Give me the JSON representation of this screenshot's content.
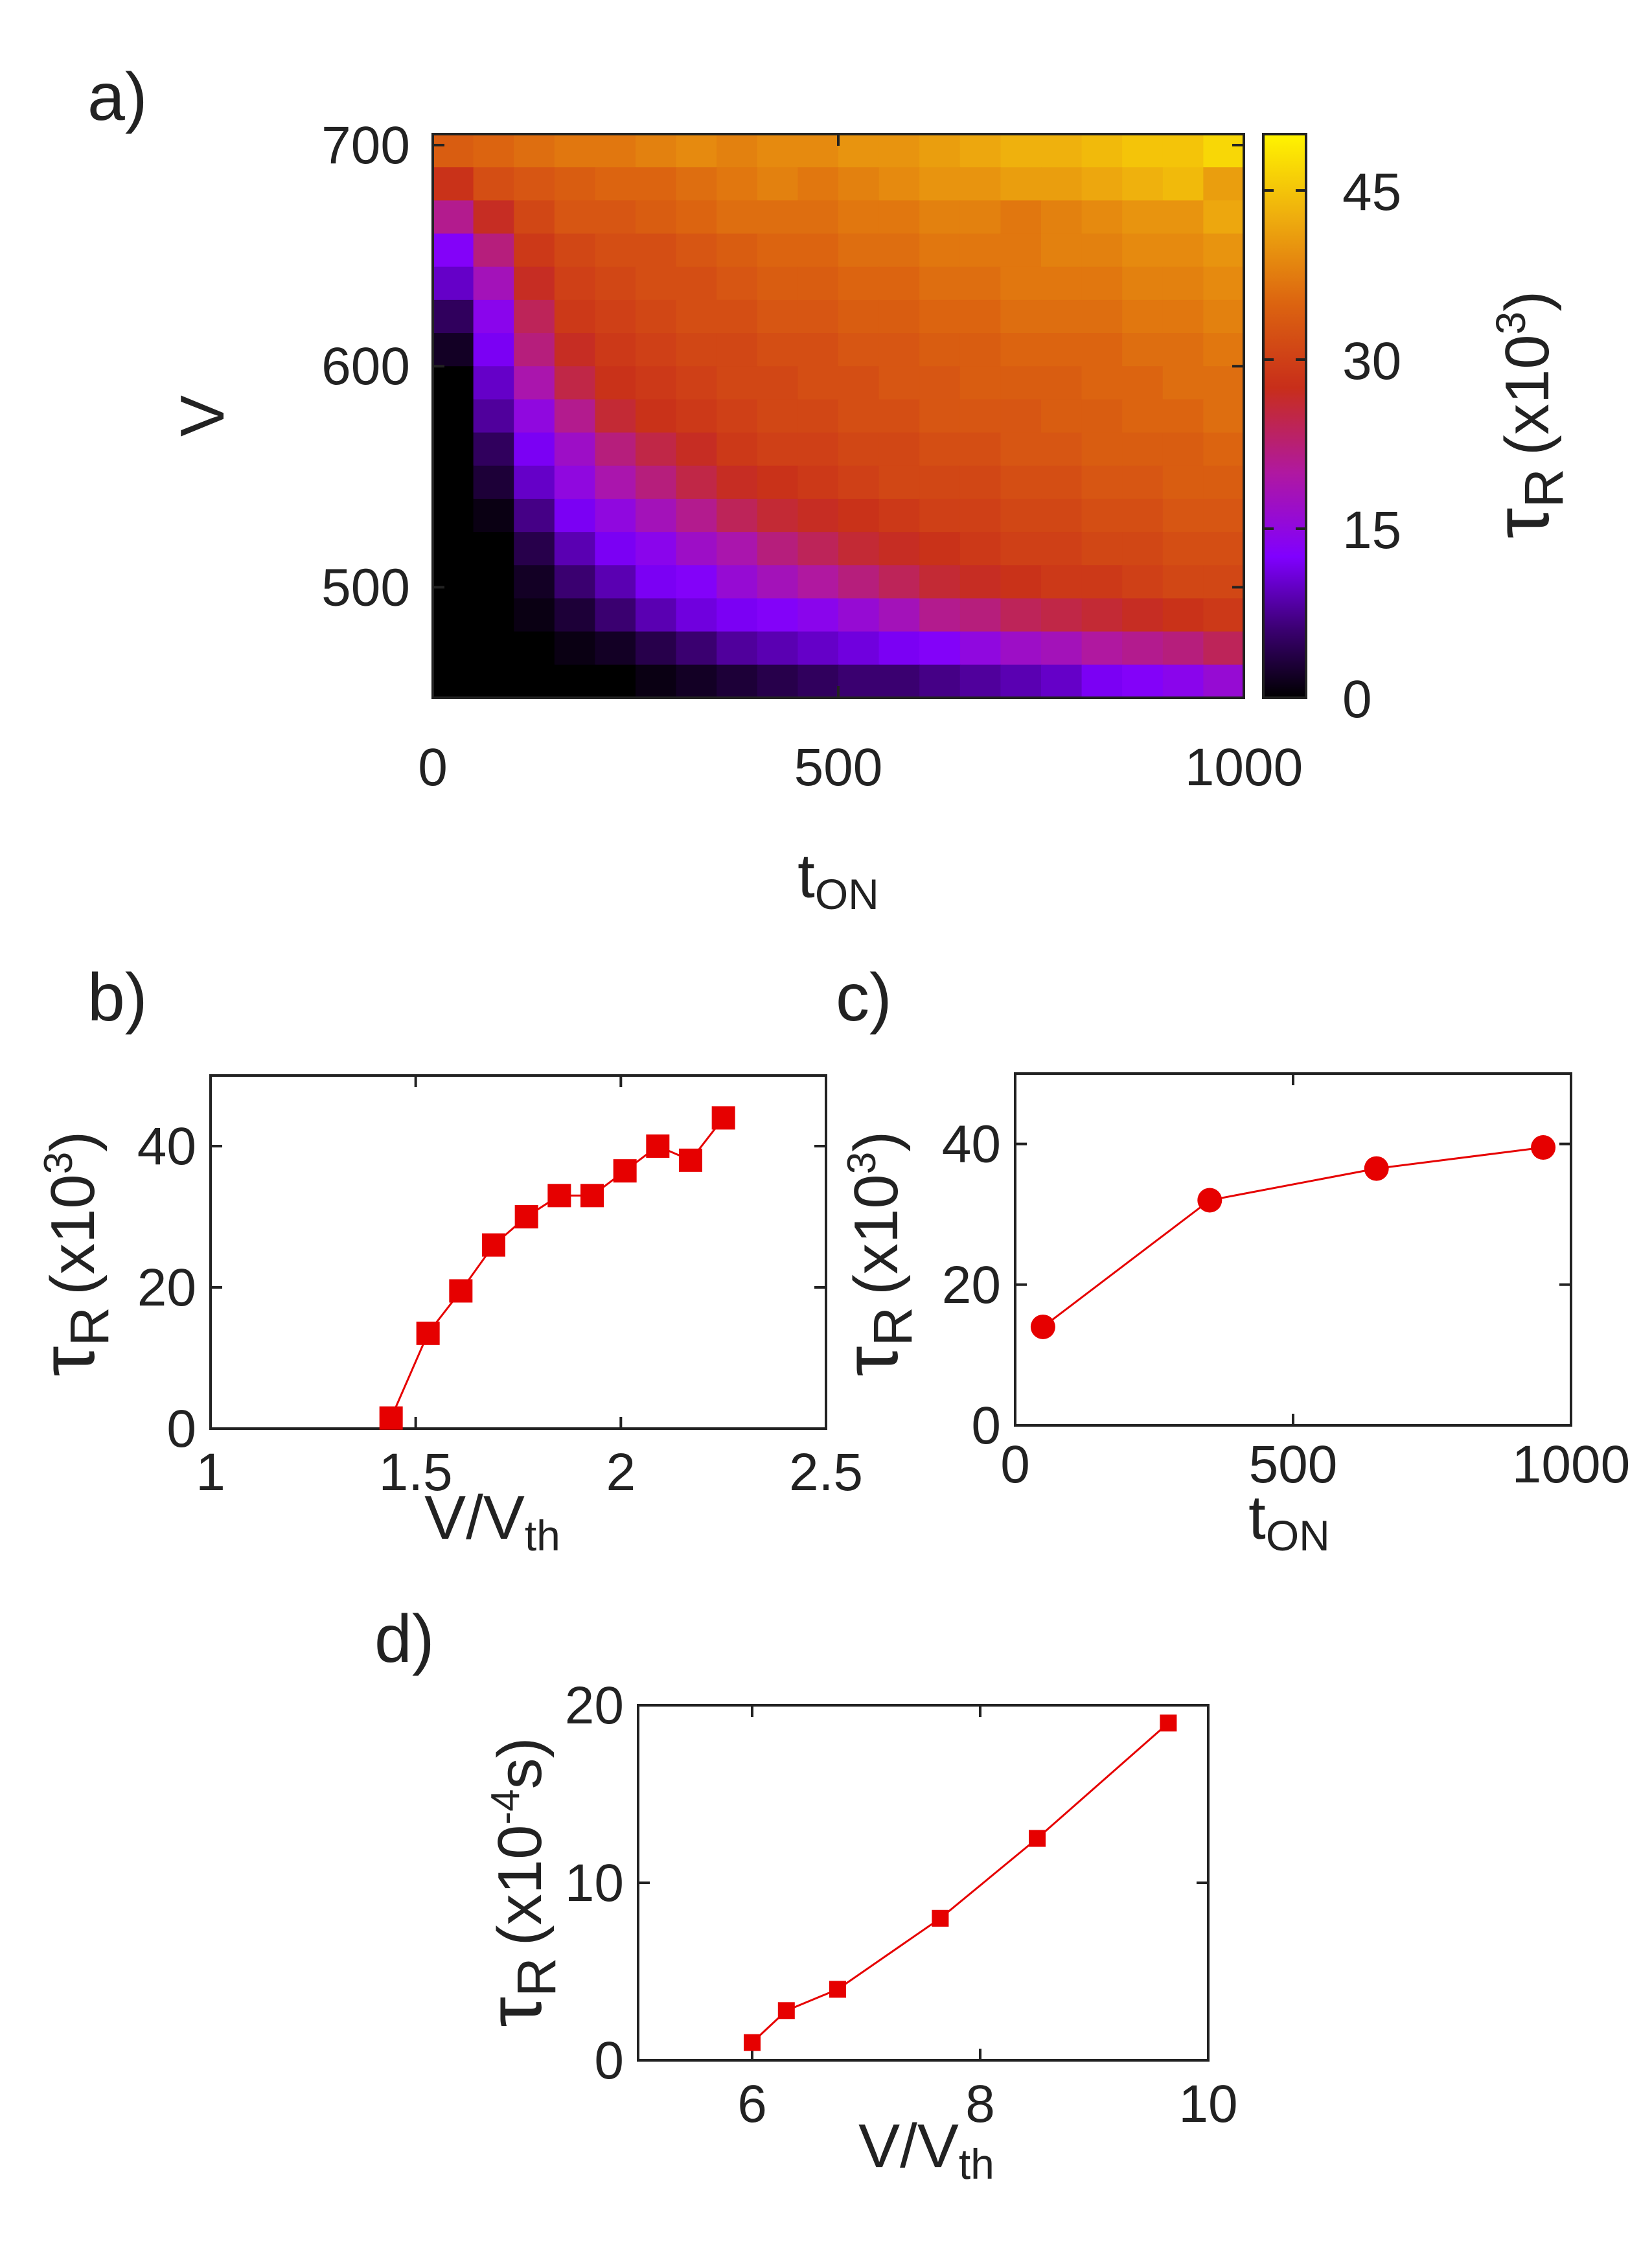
{
  "figure": {
    "panel_labels": [
      "a)",
      "b)",
      "c)",
      "d)"
    ]
  },
  "chart_data": [
    {
      "panel": "a)",
      "type": "heatmap",
      "xlabel": "t",
      "xlabel_sub": "ON",
      "ylabel": "V",
      "colorbar_label": "τ",
      "colorbar_label_sub": "R",
      "colorbar_label_unit": "(x10",
      "colorbar_label_exp": "3",
      "colorbar_label_close": ")",
      "xlim": [
        0,
        1000
      ],
      "ylim": [
        450,
        705
      ],
      "x_ticks": [
        0,
        500,
        1000
      ],
      "y_ticks": [
        500,
        600,
        700
      ],
      "colorbar_ticks": [
        0,
        15,
        30,
        45
      ],
      "colorbar_range": [
        0,
        50
      ],
      "colormap": "gnuplot (black-purple-red-orange-yellow)",
      "x_bins": [
        0,
        50,
        100,
        150,
        200,
        250,
        300,
        350,
        400,
        450,
        500,
        550,
        600,
        650,
        700,
        750,
        800,
        850,
        900,
        950,
        1000
      ],
      "y_bins": [
        450,
        465,
        480,
        495,
        510,
        525,
        540,
        555,
        570,
        585,
        600,
        615,
        630,
        645,
        660,
        675,
        690,
        705
      ],
      "values_rows_high_to_low_V": [
        [
          34,
          35,
          36,
          37,
          37,
          38,
          39,
          38,
          39,
          39,
          40,
          40,
          41,
          42,
          43,
          43,
          44,
          45,
          45,
          47
        ],
        [
          28,
          32,
          33,
          34,
          35,
          35,
          36,
          37,
          38,
          37,
          38,
          39,
          40,
          40,
          41,
          41,
          42,
          43,
          44,
          41
        ],
        [
          21,
          27,
          31,
          33,
          33,
          34,
          35,
          36,
          36,
          36,
          37,
          37,
          38,
          38,
          37,
          38,
          39,
          40,
          40,
          42
        ],
        [
          13,
          22,
          29,
          31,
          32,
          32,
          33,
          34,
          35,
          35,
          36,
          36,
          37,
          37,
          37,
          38,
          38,
          39,
          39,
          40
        ],
        [
          10,
          18,
          27,
          30,
          31,
          32,
          32,
          33,
          34,
          34,
          35,
          35,
          36,
          36,
          37,
          37,
          37,
          38,
          38,
          39
        ],
        [
          5,
          14,
          24,
          29,
          30,
          31,
          32,
          32,
          33,
          33,
          34,
          34,
          35,
          35,
          36,
          36,
          36,
          37,
          37,
          38
        ],
        [
          2,
          12,
          22,
          27,
          29,
          30,
          31,
          31,
          32,
          32,
          33,
          33,
          34,
          34,
          35,
          35,
          35,
          36,
          36,
          37
        ],
        [
          0,
          10,
          19,
          25,
          28,
          29,
          30,
          31,
          31,
          32,
          32,
          33,
          33,
          34,
          34,
          34,
          35,
          35,
          36,
          36
        ],
        [
          0,
          8,
          15,
          21,
          26,
          28,
          29,
          30,
          31,
          31,
          32,
          32,
          33,
          33,
          33,
          34,
          34,
          35,
          35,
          36
        ],
        [
          0,
          5,
          12,
          17,
          22,
          25,
          27,
          29,
          30,
          30,
          31,
          31,
          32,
          32,
          33,
          33,
          34,
          34,
          34,
          35
        ],
        [
          0,
          3,
          10,
          15,
          19,
          22,
          25,
          27,
          28,
          29,
          30,
          31,
          31,
          31,
          32,
          32,
          33,
          33,
          34,
          34
        ],
        [
          0,
          1,
          7,
          12,
          15,
          18,
          21,
          24,
          26,
          27,
          28,
          29,
          30,
          30,
          31,
          31,
          32,
          32,
          33,
          33
        ],
        [
          0,
          0,
          4,
          9,
          12,
          14,
          17,
          19,
          22,
          24,
          26,
          27,
          28,
          29,
          30,
          30,
          31,
          31,
          32,
          32
        ],
        [
          0,
          0,
          2,
          6,
          9,
          12,
          13,
          16,
          18,
          20,
          22,
          24,
          26,
          27,
          28,
          29,
          29,
          30,
          31,
          31
        ],
        [
          0,
          0,
          1,
          3,
          6,
          9,
          11,
          12,
          13,
          14,
          16,
          18,
          21,
          22,
          24,
          25,
          26,
          27,
          28,
          29
        ],
        [
          0,
          0,
          0,
          1,
          2,
          4,
          6,
          8,
          9,
          10,
          11,
          12,
          13,
          15,
          17,
          18,
          20,
          21,
          22,
          24
        ],
        [
          0,
          0,
          0,
          0,
          0,
          1,
          2,
          3,
          4,
          5,
          6,
          6,
          7,
          8,
          9,
          10,
          12,
          13,
          14,
          16
        ]
      ]
    },
    {
      "panel": "b)",
      "type": "line",
      "marker": "square",
      "color": "#e60000",
      "xlabel": "V/V",
      "xlabel_sub": "th",
      "ylabel": "τ",
      "ylabel_sub": "R",
      "ylabel_unit": "(x10",
      "ylabel_exp": "3",
      "ylabel_close": ")",
      "xlim": [
        1,
        2.5
      ],
      "ylim": [
        0,
        50
      ],
      "x_ticks": [
        1,
        1.5,
        2,
        2.5
      ],
      "x_tick_labels": [
        "1",
        "1.5",
        "2",
        "2.5"
      ],
      "y_ticks": [
        0,
        20,
        40
      ],
      "x": [
        1.44,
        1.53,
        1.61,
        1.69,
        1.77,
        1.85,
        1.93,
        2.01,
        2.09,
        2.17,
        2.25
      ],
      "y": [
        1.5,
        13.5,
        19.5,
        26,
        30,
        33,
        33,
        36.5,
        40,
        38,
        44
      ]
    },
    {
      "panel": "c)",
      "type": "line",
      "marker": "circle",
      "color": "#e60000",
      "xlabel": "t",
      "xlabel_sub": "ON",
      "ylabel": "τ",
      "ylabel_sub": "R",
      "ylabel_unit": "(x10",
      "ylabel_exp": "3",
      "ylabel_close": ")",
      "xlim": [
        0,
        1000
      ],
      "ylim": [
        0,
        50
      ],
      "x_ticks": [
        0,
        500,
        1000
      ],
      "y_ticks": [
        0,
        20,
        40
      ],
      "x": [
        50,
        350,
        650,
        950
      ],
      "y": [
        14,
        32,
        36.5,
        39.5
      ]
    },
    {
      "panel": "d)",
      "type": "line",
      "marker": "square",
      "color": "#e60000",
      "xlabel": "V/V",
      "xlabel_sub": "th",
      "ylabel": "τ",
      "ylabel_sub": "R",
      "ylabel_unit": "(x10",
      "ylabel_exp": "-4",
      "ylabel_close": "s)",
      "xlim": [
        5,
        10
      ],
      "ylim": [
        0,
        20
      ],
      "x_ticks": [
        6,
        8,
        10
      ],
      "y_ticks": [
        0,
        10,
        20
      ],
      "x": [
        6.0,
        6.3,
        6.75,
        7.65,
        8.5,
        9.65
      ],
      "y": [
        1,
        2.8,
        4,
        8,
        12.5,
        19
      ]
    }
  ]
}
